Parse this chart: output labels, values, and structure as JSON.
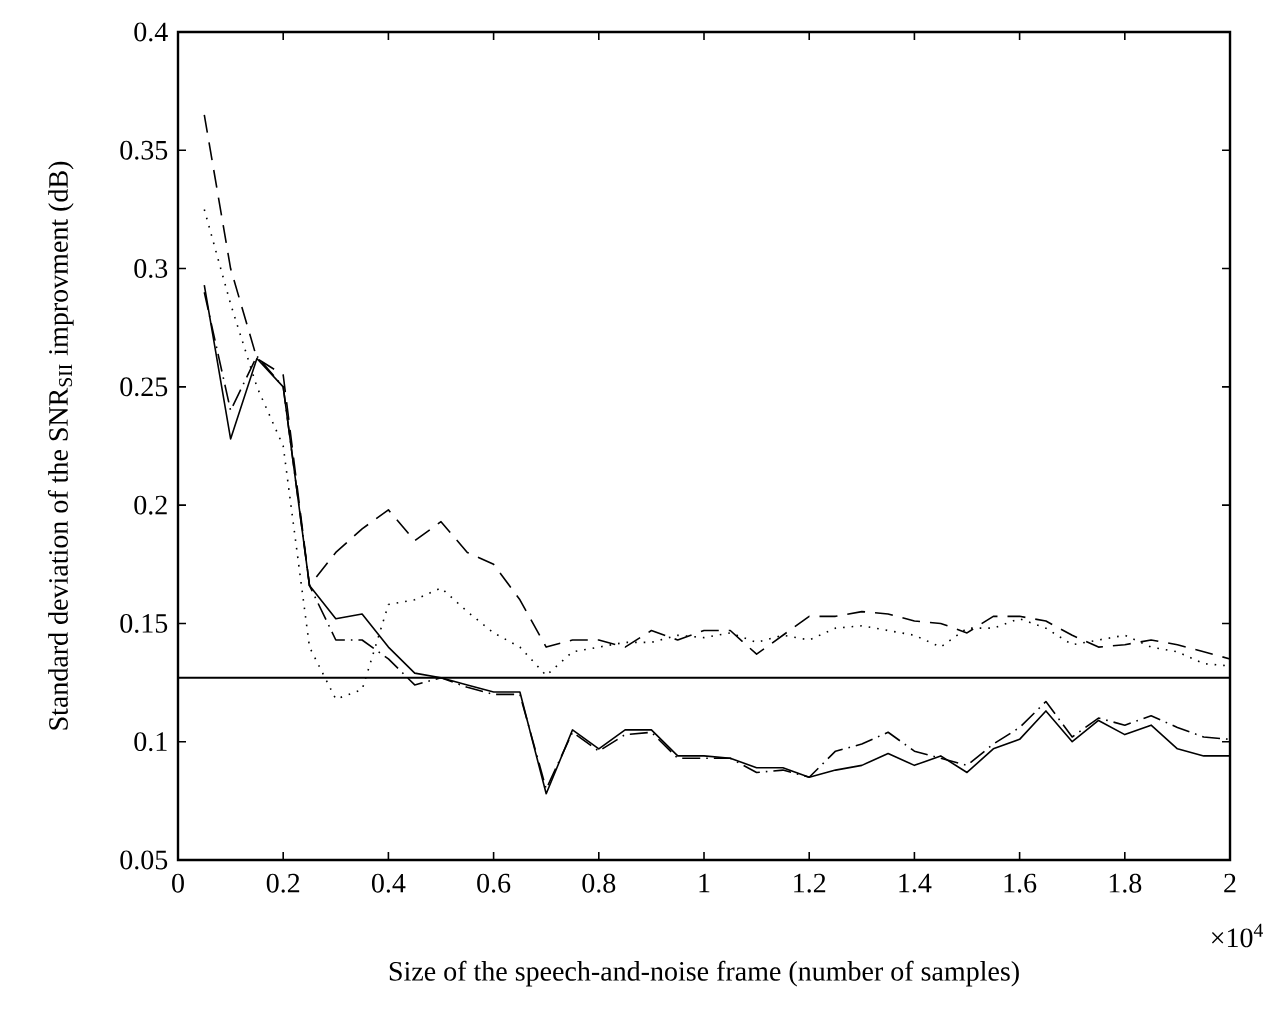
{
  "chart_data": {
    "type": "line",
    "xlabel": "Size of the speech-and-noise frame (number of samples)",
    "ylabel": "Standard deviation of the SNR$_{SII}$ improvment (dB)",
    "annotations": [
      "×10$^{4}$"
    ],
    "x": [
      0.05,
      0.1,
      0.15,
      0.2,
      0.25,
      0.3,
      0.35,
      0.4,
      0.45,
      0.5,
      0.55,
      0.6,
      0.65,
      0.7,
      0.75,
      0.8,
      0.85,
      0.9,
      0.95,
      1.0,
      1.05,
      1.1,
      1.15,
      1.2,
      1.25,
      1.3,
      1.35,
      1.4,
      1.45,
      1.5,
      1.55,
      1.6,
      1.65,
      1.7,
      1.75,
      1.8,
      1.85,
      1.9,
      1.95,
      2.0
    ],
    "xlim": [
      0,
      2
    ],
    "xticks": [
      0,
      0.2,
      0.4,
      0.6,
      0.8,
      1,
      1.2,
      1.4,
      1.6,
      1.8,
      2
    ],
    "ylim": [
      0.05,
      0.4
    ],
    "yticks": [
      0.05,
      0.1,
      0.15,
      0.2,
      0.25,
      0.3,
      0.35,
      0.4
    ],
    "grid": false,
    "marker": "none",
    "ref_lines": [
      {
        "axis": "y",
        "value": 0.127,
        "color": "#000000",
        "line_style": "solid"
      }
    ],
    "series": [
      {
        "color": "#000000",
        "line_style": "solid",
        "values": [
          0.293,
          0.228,
          0.262,
          0.25,
          0.166,
          0.152,
          0.154,
          0.14,
          0.129,
          0.127,
          0.124,
          0.121,
          0.121,
          0.078,
          0.105,
          0.097,
          0.105,
          0.105,
          0.094,
          0.094,
          0.093,
          0.089,
          0.089,
          0.085,
          0.088,
          0.09,
          0.095,
          0.09,
          0.094,
          0.087,
          0.097,
          0.101,
          0.113,
          0.1,
          0.109,
          0.103,
          0.107,
          0.097,
          0.094,
          0.094
        ]
      },
      {
        "color": "#000000",
        "line_style": "dashdotted",
        "values": [
          0.29,
          0.24,
          0.263,
          0.25,
          0.166,
          0.143,
          0.143,
          0.135,
          0.124,
          0.127,
          0.123,
          0.12,
          0.12,
          0.08,
          0.104,
          0.096,
          0.103,
          0.104,
          0.093,
          0.093,
          0.093,
          0.087,
          0.088,
          0.085,
          0.096,
          0.099,
          0.104,
          0.096,
          0.093,
          0.09,
          0.099,
          0.106,
          0.117,
          0.102,
          0.11,
          0.107,
          0.111,
          0.106,
          0.102,
          0.101
        ]
      },
      {
        "color": "#000000",
        "line_style": "dashed",
        "values": [
          0.365,
          0.3,
          0.262,
          0.255,
          0.166,
          0.18,
          0.19,
          0.198,
          0.185,
          0.193,
          0.18,
          0.175,
          0.16,
          0.14,
          0.143,
          0.143,
          0.14,
          0.147,
          0.143,
          0.147,
          0.147,
          0.137,
          0.145,
          0.153,
          0.153,
          0.155,
          0.154,
          0.151,
          0.15,
          0.146,
          0.153,
          0.153,
          0.151,
          0.145,
          0.14,
          0.141,
          0.143,
          0.141,
          0.138,
          0.135
        ]
      },
      {
        "color": "#000000",
        "line_style": "dotted",
        "values": [
          0.325,
          0.285,
          0.25,
          0.225,
          0.14,
          0.118,
          0.122,
          0.158,
          0.16,
          0.165,
          0.155,
          0.146,
          0.14,
          0.128,
          0.138,
          0.14,
          0.142,
          0.142,
          0.145,
          0.144,
          0.146,
          0.142,
          0.145,
          0.143,
          0.148,
          0.149,
          0.147,
          0.145,
          0.14,
          0.148,
          0.148,
          0.152,
          0.148,
          0.141,
          0.143,
          0.145,
          0.14,
          0.138,
          0.133,
          0.132
        ]
      }
    ]
  }
}
